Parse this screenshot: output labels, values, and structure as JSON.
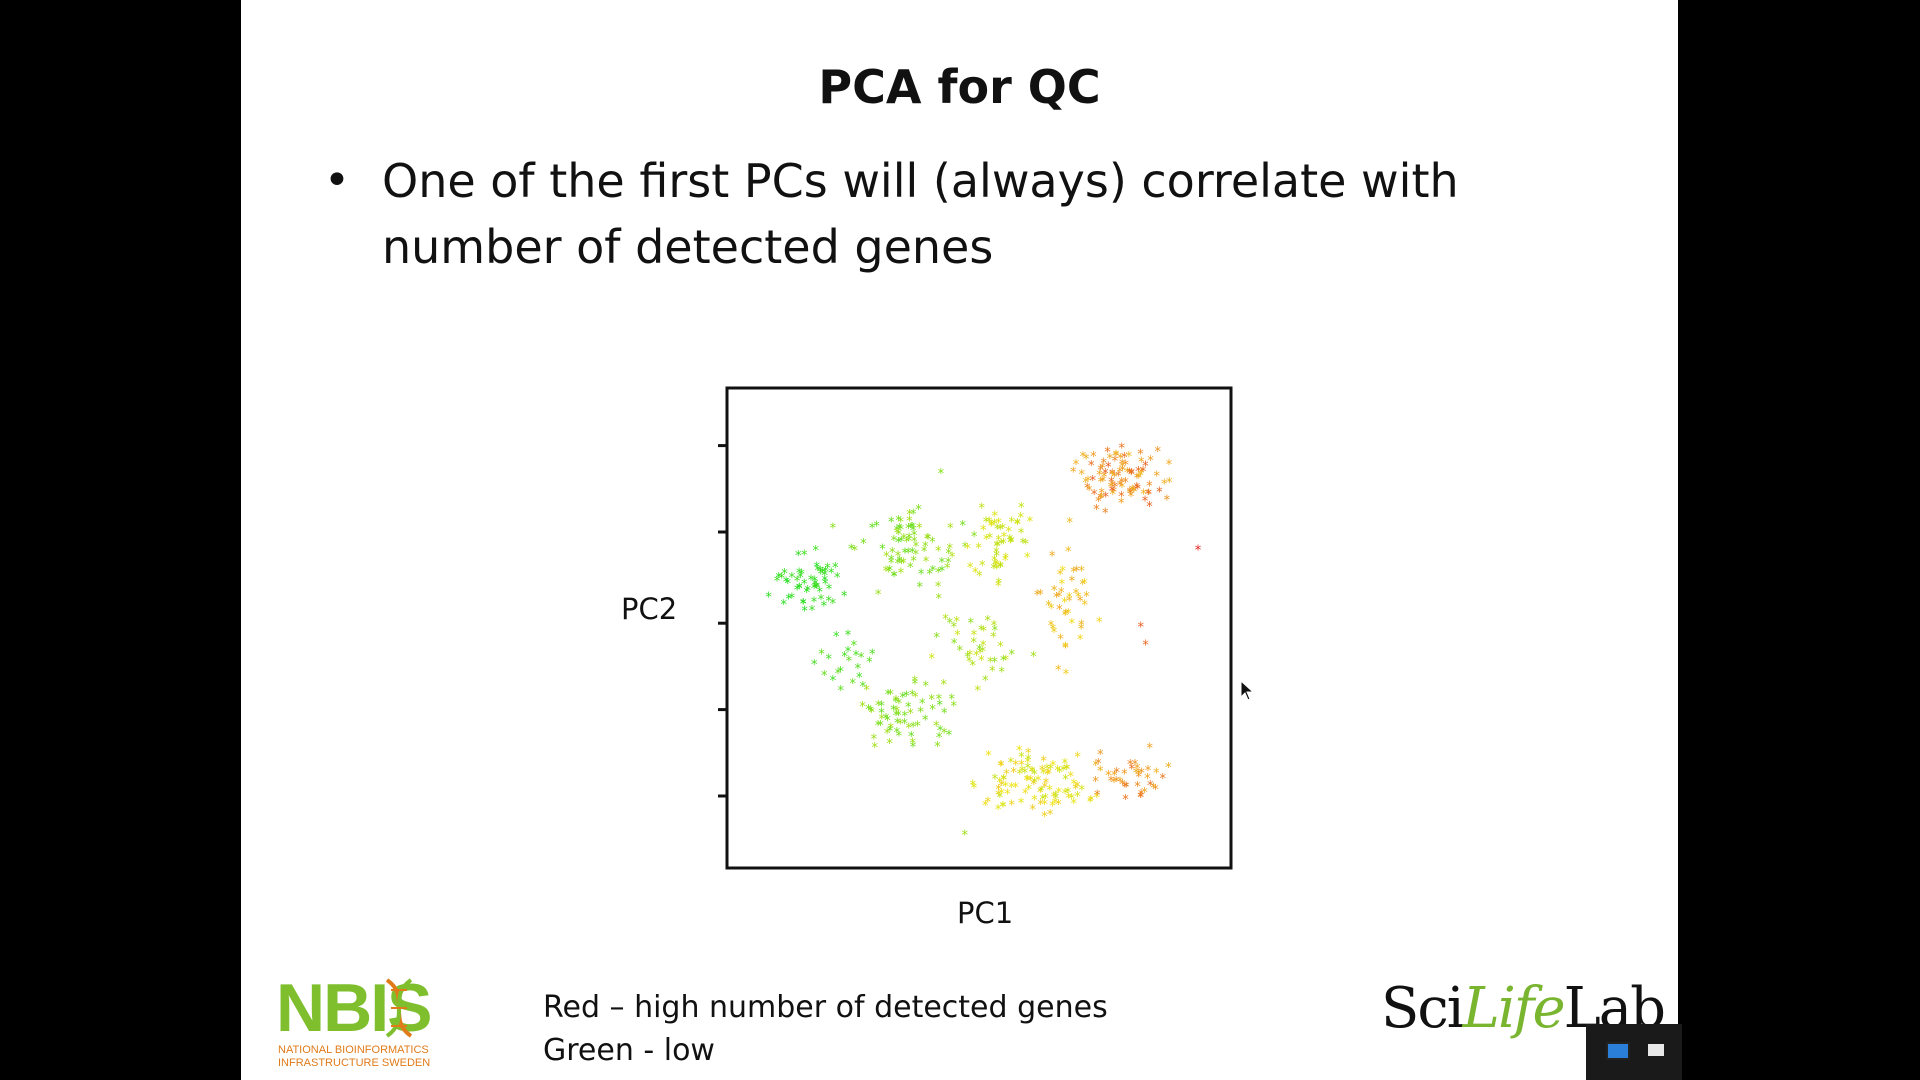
{
  "slide": {
    "title": "PCA for QC",
    "bullet_symbol": "•",
    "bullet": "One of the first PCs will (always) correlate with number of detected genes",
    "legend_line1": "Red – high number of detected genes",
    "legend_line2": "Green - low"
  },
  "logos": {
    "nbis_letters": "NBIS",
    "nbis_line1": "NATIONAL BIOINFORMATICS",
    "nbis_line2": "INFRASTRUCTURE SWEDEN",
    "scilifelab_sci": "Sci",
    "scilifelab_life": "Life",
    "scilifelab_lab": "Lab"
  },
  "colors": {
    "high": "#e02020",
    "low": "#22dd22",
    "nbis_green": "#7fbf2e",
    "nbis_orange": "#e07b1a"
  },
  "chart_data": {
    "type": "scatter",
    "title": "",
    "xlabel": "PC1",
    "ylabel": "PC2",
    "xlim": [
      0,
      1
    ],
    "ylim": [
      0,
      1
    ],
    "grid": false,
    "legend": "none",
    "color_encoding": "number of detected genes (green = low, red = high)",
    "clusters": [
      {
        "cx": 0.14,
        "cy": 0.6,
        "rx": 0.07,
        "ry": 0.06,
        "n": 55,
        "g0": 0.0,
        "g1": 0.08
      },
      {
        "cx": 0.36,
        "cy": 0.67,
        "rx": 0.1,
        "ry": 0.09,
        "n": 80,
        "g0": 0.15,
        "g1": 0.35
      },
      {
        "cx": 0.55,
        "cy": 0.68,
        "rx": 0.07,
        "ry": 0.08,
        "n": 55,
        "g0": 0.38,
        "g1": 0.52
      },
      {
        "cx": 0.8,
        "cy": 0.82,
        "rx": 0.09,
        "ry": 0.06,
        "n": 95,
        "g0": 0.68,
        "g1": 0.88
      },
      {
        "cx": 0.68,
        "cy": 0.55,
        "rx": 0.06,
        "ry": 0.14,
        "n": 45,
        "g0": 0.58,
        "g1": 0.74
      },
      {
        "cx": 0.35,
        "cy": 0.3,
        "rx": 0.09,
        "ry": 0.07,
        "n": 65,
        "g0": 0.16,
        "g1": 0.34
      },
      {
        "cx": 0.62,
        "cy": 0.16,
        "rx": 0.12,
        "ry": 0.06,
        "n": 100,
        "g0": 0.42,
        "g1": 0.64
      },
      {
        "cx": 0.82,
        "cy": 0.16,
        "rx": 0.07,
        "ry": 0.06,
        "n": 40,
        "g0": 0.7,
        "g1": 0.85
      },
      {
        "cx": 0.5,
        "cy": 0.45,
        "rx": 0.09,
        "ry": 0.07,
        "n": 40,
        "g0": 0.25,
        "g1": 0.45
      },
      {
        "cx": 0.22,
        "cy": 0.42,
        "rx": 0.06,
        "ry": 0.06,
        "n": 22,
        "g0": 0.05,
        "g1": 0.18
      }
    ],
    "points": [
      {
        "x": 0.96,
        "y": 0.67,
        "g": 1.0
      },
      {
        "x": 0.84,
        "y": 0.5,
        "g": 0.88
      },
      {
        "x": 0.85,
        "y": 0.46,
        "g": 0.86
      },
      {
        "x": 0.09,
        "y": 0.55,
        "g": 0.02
      },
      {
        "x": 0.47,
        "y": 0.04,
        "g": 0.32
      },
      {
        "x": 0.42,
        "y": 0.84,
        "g": 0.25
      }
    ]
  }
}
